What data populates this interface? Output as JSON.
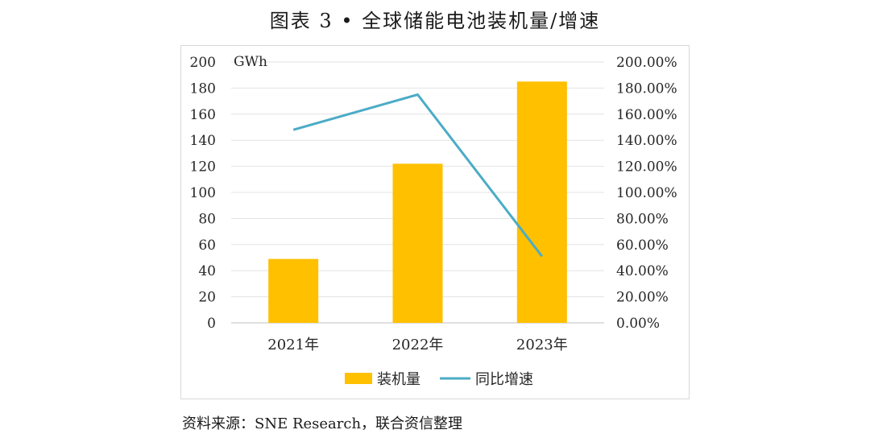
{
  "title": "图表 3 • 全球储能电池装机量/增速",
  "source": "资料来源：SNE Research，联合资信整理",
  "chart_data": {
    "type": "bar",
    "categories": [
      "2021年",
      "2022年",
      "2023年"
    ],
    "series": [
      {
        "name": "装机量",
        "type": "bar",
        "axis": "left",
        "color": "#FFC000",
        "values": [
          49,
          122,
          185
        ]
      },
      {
        "name": "同比增速",
        "type": "line",
        "axis": "right",
        "color": "#4BACC6",
        "values": [
          148,
          175,
          51
        ]
      }
    ],
    "y_left": {
      "unit": "GWh",
      "ylim": [
        0,
        200
      ],
      "ticks": [
        "0",
        "20",
        "40",
        "60",
        "80",
        "100",
        "120",
        "140",
        "160",
        "180",
        "200"
      ]
    },
    "y_right": {
      "ylim": [
        0,
        200
      ],
      "ticks": [
        "0.00%",
        "20.00%",
        "40.00%",
        "60.00%",
        "80.00%",
        "100.00%",
        "120.00%",
        "140.00%",
        "160.00%",
        "180.00%",
        "200.00%"
      ]
    },
    "grid": true,
    "legend_position": "bottom"
  }
}
